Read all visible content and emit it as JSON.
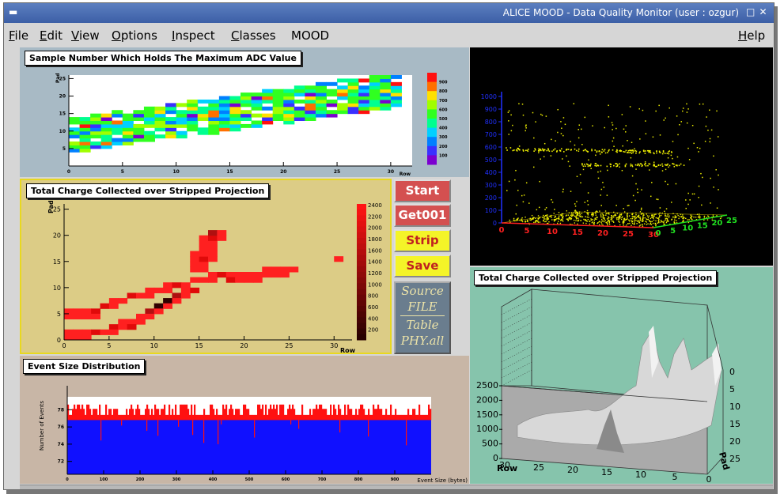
{
  "window": {
    "title": "ALICE MOOD - Data Quality Monitor (user : ozgur)"
  },
  "menu": {
    "file": {
      "u": "F",
      "rest": "ile"
    },
    "edit": {
      "u": "E",
      "rest": "dit"
    },
    "view": {
      "u": "V",
      "rest": "iew"
    },
    "options": {
      "u": "O",
      "rest": "ptions"
    },
    "inspect": {
      "u": "I",
      "rest": "nspect"
    },
    "classes": {
      "u": "C",
      "rest": "lasses"
    },
    "mood": "MOOD",
    "help": {
      "u": "H",
      "rest": "elp"
    }
  },
  "panels": {
    "adc_map": {
      "title": "Sample Number Which Holds The Maximum ADC Value",
      "ylabel": "Pad",
      "xlabel": "Row"
    },
    "charge_map": {
      "title": "Total Charge Collected over Stripped Projection",
      "ylabel": "Pad",
      "xlabel": "Row"
    },
    "event_size": {
      "title": "Event Size Distribution",
      "ylabel": "Number of Events",
      "xlabel": "Event Size (bytes)"
    },
    "lego": {
      "title": "Total Charge Collected over Stripped Projection",
      "xlabel": "Row",
      "ylabel": "Pad"
    }
  },
  "controls": {
    "start": "Start",
    "get": "Get001",
    "strip": "Strip",
    "save": "Save",
    "source_label": "Source",
    "source_value": "FILE",
    "table_label": "Table",
    "table_value": "PHY.all"
  },
  "colors": {
    "start_button": "#d45050",
    "get_button": "#d45050",
    "strip_button": "#f4f428",
    "save_button": "#f4f428",
    "adc_panel_bg": "#a8bac5",
    "charge_panel_bg": "#dccc86",
    "event_panel_bg": "#c8b6a6",
    "lego_panel_bg": "#86c4ac",
    "scatter_bg": "#000000"
  },
  "chart_data": [
    {
      "type": "heatmap",
      "title": "Sample Number Which Holds The Maximum ADC Value",
      "xlabel": "Row",
      "ylabel": "Pad",
      "x_ticks": [
        0,
        5,
        10,
        15,
        20,
        25,
        30
      ],
      "y_ticks": [
        5,
        10,
        15,
        20,
        25
      ],
      "colorbar_ticks": [
        100,
        200,
        300,
        400,
        500,
        600,
        700,
        800,
        900
      ],
      "xlim": [
        0,
        32
      ],
      "ylim": [
        0,
        26
      ]
    },
    {
      "type": "heatmap",
      "title": "Total Charge Collected over Stripped Projection",
      "xlabel": "Row",
      "ylabel": "Pad",
      "x_ticks": [
        0,
        5,
        10,
        15,
        20,
        25,
        30
      ],
      "y_ticks": [
        0,
        5,
        10,
        15,
        20,
        25
      ],
      "colorbar_ticks": [
        200,
        400,
        600,
        800,
        1000,
        1200,
        1400,
        1600,
        1800,
        2000,
        2200,
        2400
      ],
      "xlim": [
        0,
        32
      ],
      "ylim": [
        0,
        26
      ]
    },
    {
      "type": "bar",
      "title": "Event Size Distribution",
      "xlabel": "Event Size (bytes)",
      "ylabel": "Number of Events",
      "x_ticks": [
        0,
        100,
        200,
        300,
        400,
        500,
        600,
        700,
        800,
        900
      ],
      "y_ticks": [
        72,
        74,
        76,
        78
      ],
      "ylim": [
        70.5,
        79.5
      ],
      "values_summary": "most bins ~77, upper band 77-78"
    },
    {
      "type": "scatter",
      "title": "",
      "z_ticks": [
        0,
        100,
        200,
        300,
        400,
        500,
        600,
        700,
        800,
        900,
        1000
      ],
      "x_ticks": [
        0,
        5,
        10,
        15,
        20,
        25,
        30
      ],
      "y_ticks": [
        0,
        5,
        10,
        15,
        20,
        25
      ]
    },
    {
      "type": "area",
      "title": "Total Charge Collected over Stripped Projection",
      "xlabel": "Row",
      "ylabel": "Pad",
      "z_ticks": [
        0,
        500,
        1000,
        1500,
        2000,
        2500
      ],
      "x_ticks": [
        30,
        25,
        20,
        15,
        10,
        5,
        0
      ],
      "y_ticks": [
        0,
        5,
        10,
        15,
        20,
        25
      ]
    }
  ]
}
